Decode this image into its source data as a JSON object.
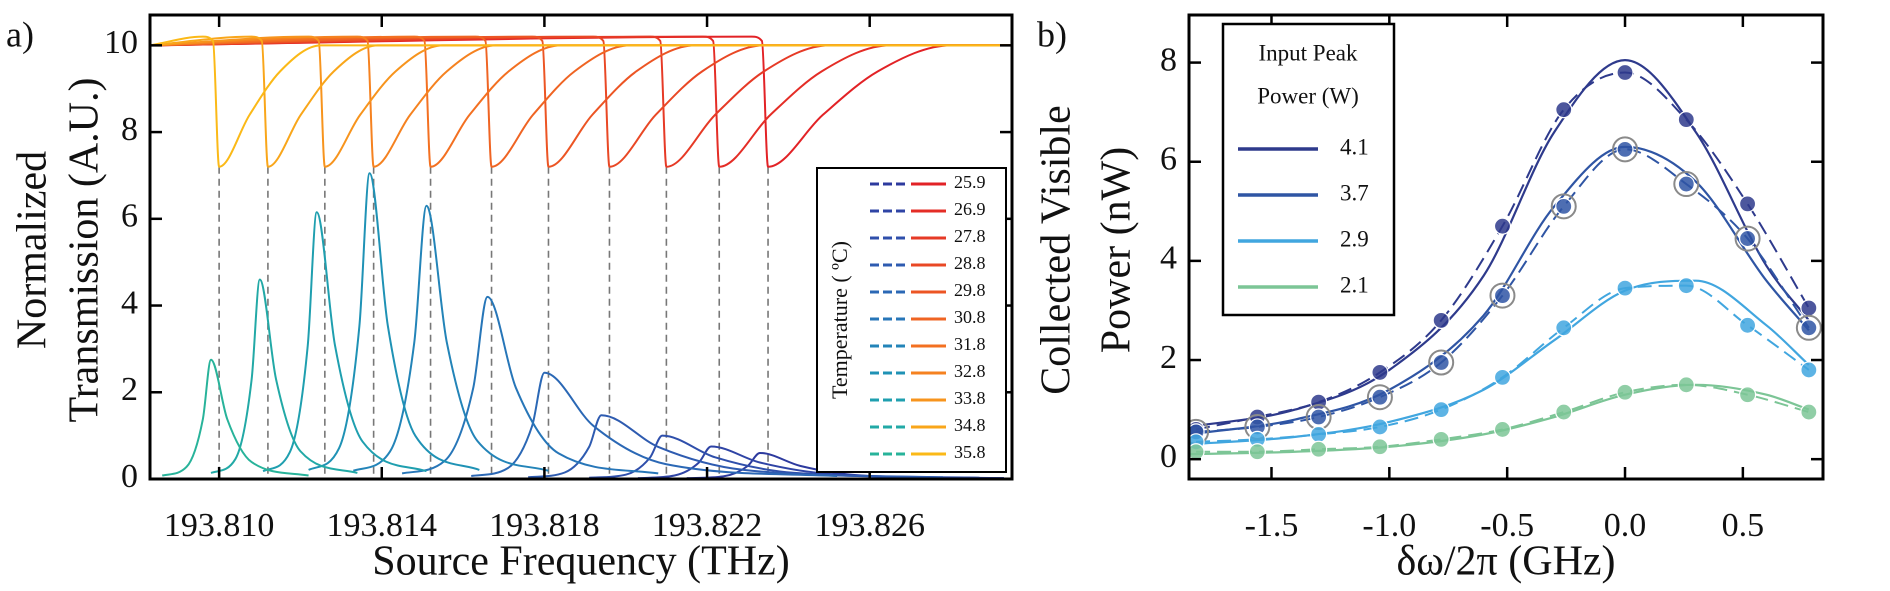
{
  "chart_data": [
    {
      "type": "line",
      "panel_label": "a)",
      "y_label": [
        "Normalized",
        "Transmission (A.U.)"
      ],
      "x_label": "Source Frequency (THz)",
      "xlim": [
        193.8083,
        193.8295
      ],
      "ylim": [
        0,
        10.7
      ],
      "xticks": [
        {
          "value": 193.81,
          "label": "193.810"
        },
        193.814,
        193.818,
        193.822,
        193.826
      ],
      "yticks": [
        0,
        2,
        4,
        6,
        8,
        10
      ],
      "legend_title": "Temperature ( ºC)",
      "series": [
        {
          "name": "25.9",
          "color": "#e22226",
          "x": [
            193.8083,
            193.8231,
            193.82335,
            193.8235,
            193.82485,
            193.8262,
            193.828,
            193.8295
          ],
          "values": [
            10.0,
            10.2,
            10.1,
            7.2,
            8.4,
            9.4,
            10.0,
            10.0
          ],
          "peak_color": "#2d3a9e",
          "peak_x": [
            193.8215,
            193.8224,
            193.823,
            193.8233,
            193.8243,
            193.8258,
            193.8293
          ],
          "peak_values": [
            0.02,
            0.06,
            0.3,
            0.6,
            0.3,
            0.08,
            0.02
          ]
        },
        {
          "name": "26.9",
          "color": "#e42d26",
          "x": [
            193.8083,
            193.8219,
            193.82215,
            193.8223,
            193.82356,
            193.82482,
            193.8265,
            193.8295
          ],
          "values": [
            10.0,
            10.2,
            10.1,
            7.2,
            8.4,
            9.4,
            10.0,
            10.0
          ],
          "peak_color": "#2f44a5",
          "peak_x": [
            193.8203,
            193.8212,
            193.8218,
            193.8221,
            193.8233,
            193.8251,
            193.8293
          ],
          "peak_values": [
            0.02,
            0.08,
            0.38,
            0.75,
            0.38,
            0.11,
            0.02
          ]
        },
        {
          "name": "27.8",
          "color": "#e63a26",
          "x": [
            193.8083,
            193.8206,
            193.82085,
            193.821,
            193.8222,
            193.8234,
            193.825,
            193.8295
          ],
          "values": [
            10.0,
            10.2,
            10.1,
            7.2,
            8.4,
            9.4,
            10.0,
            10.0
          ],
          "peak_color": "#2f4fab",
          "peak_x": [
            193.8191,
            193.82,
            193.8206,
            193.8209,
            193.8222,
            193.82415,
            193.8287
          ],
          "peak_values": [
            0.03,
            0.1,
            0.5,
            1.0,
            0.5,
            0.14,
            0.03
          ]
        },
        {
          "name": "28.8",
          "color": "#e94825",
          "x": [
            193.8083,
            193.8192,
            193.81945,
            193.8196,
            193.82074,
            193.82188,
            193.8234,
            193.8295
          ],
          "values": [
            10.0,
            10.2,
            10.1,
            7.2,
            8.4,
            9.4,
            10.0,
            10.0
          ],
          "peak_color": "#2e5bb0",
          "peak_x": [
            193.8176,
            193.8185,
            193.8191,
            193.8194,
            193.8208,
            193.8229,
            193.8278
          ],
          "peak_values": [
            0.04,
            0.15,
            0.74,
            1.47,
            0.74,
            0.21,
            0.04
          ]
        },
        {
          "name": "29.8",
          "color": "#ec5524",
          "x": [
            193.8083,
            193.8177,
            193.81795,
            193.8181,
            193.81918,
            193.82026,
            193.8217,
            193.8295
          ],
          "values": [
            10.0,
            10.2,
            10.1,
            7.2,
            8.4,
            9.4,
            10.0,
            10.0
          ],
          "peak_color": "#2b68b5",
          "peak_x": [
            193.8162,
            193.8171,
            193.8177,
            193.818,
            193.8192,
            193.821,
            193.8252
          ],
          "peak_values": [
            0.07,
            0.25,
            1.23,
            2.45,
            1.23,
            0.34,
            0.07
          ]
        },
        {
          "name": "30.8",
          "color": "#ef6423",
          "x": [
            193.8083,
            193.8163,
            193.81655,
            193.8167,
            193.81772,
            193.81874,
            193.8201,
            193.8295
          ],
          "values": [
            10.0,
            10.2,
            10.1,
            7.2,
            8.4,
            9.4,
            10.0,
            10.0
          ],
          "peak_color": "#2776b8",
          "peak_x": [
            193.8145,
            193.81555,
            193.81625,
            193.8166,
            193.8173,
            193.81835,
            193.8208
          ],
          "peak_values": [
            0.13,
            0.42,
            2.1,
            4.2,
            2.1,
            0.59,
            0.13
          ]
        },
        {
          "name": "31.8",
          "color": "#f37021",
          "x": [
            193.8083,
            193.8148,
            193.81505,
            193.8152,
            193.81616,
            193.81712,
            193.8184,
            193.8295
          ],
          "values": [
            10.0,
            10.2,
            10.1,
            7.2,
            8.4,
            9.4,
            10.0,
            10.0
          ],
          "peak_color": "#2384b8",
          "peak_x": [
            193.8133,
            193.8142,
            193.8148,
            193.8151,
            193.8156,
            193.81635,
            193.8181
          ],
          "peak_values": [
            0.19,
            0.63,
            3.15,
            6.3,
            3.15,
            0.88,
            0.19
          ]
        },
        {
          "name": "32.8",
          "color": "#f58220",
          "x": [
            193.8083,
            193.8134,
            193.81365,
            193.8138,
            193.8147,
            193.8156,
            193.8168,
            193.8295
          ],
          "values": [
            10.0,
            10.2,
            10.1,
            7.2,
            8.4,
            9.4,
            10.0,
            10.0
          ],
          "peak_color": "#1f92b5",
          "peak_x": [
            193.8122,
            193.81295,
            193.81345,
            193.8137,
            193.81415,
            193.81483,
            193.8164
          ],
          "peak_values": [
            0.21,
            0.71,
            3.53,
            7.05,
            3.53,
            0.99,
            0.21
          ]
        },
        {
          "name": "33.8",
          "color": "#f7941d",
          "x": [
            193.8083,
            193.8122,
            193.81245,
            193.8126,
            193.81347,
            193.81434,
            193.8155,
            193.8295
          ],
          "values": [
            10.0,
            10.2,
            10.1,
            7.2,
            8.4,
            9.4,
            10.0,
            10.0
          ],
          "peak_color": "#1f9faf",
          "peak_x": [
            193.81108,
            193.81174,
            193.81218,
            193.8124,
            193.81285,
            193.81353,
            193.8151
          ],
          "peak_values": [
            0.18,
            0.62,
            3.08,
            6.15,
            3.08,
            0.86,
            0.18
          ]
        },
        {
          "name": "34.8",
          "color": "#f9a61a",
          "x": [
            193.8083,
            193.8108,
            193.81105,
            193.8112,
            193.81201,
            193.81282,
            193.8139,
            193.8295
          ],
          "values": [
            10.0,
            10.2,
            10.1,
            7.2,
            8.4,
            9.4,
            10.0,
            10.0
          ],
          "peak_color": "#22a9a6",
          "peak_x": [
            193.8098,
            193.8104,
            193.8108,
            193.811,
            193.8114,
            193.812,
            193.8134
          ],
          "peak_values": [
            0.14,
            0.46,
            2.3,
            4.6,
            2.3,
            0.64,
            0.14
          ]
        },
        {
          "name": "35.8",
          "color": "#fbb917",
          "x": [
            193.8083,
            193.8096,
            193.80985,
            193.81,
            193.81075,
            193.8115,
            193.8125,
            193.8295
          ],
          "values": [
            10.0,
            10.2,
            10.1,
            7.2,
            8.4,
            9.4,
            10.0,
            10.0
          ],
          "peak_color": "#28b39a",
          "peak_x": [
            193.8086,
            193.8092,
            193.8096,
            193.8098,
            193.8102,
            193.8108,
            193.8122
          ],
          "peak_values": [
            0.08,
            0.28,
            1.38,
            2.75,
            1.38,
            0.39,
            0.08
          ]
        }
      ]
    },
    {
      "type": "scatter",
      "panel_label": "b)",
      "y_label": [
        "Collected  Visible",
        "Power (nW)"
      ],
      "x_label": "δω/2π (GHz)",
      "xlim": [
        -1.85,
        0.84
      ],
      "ylim": [
        -0.4,
        8.96
      ],
      "xticks": [
        -1.5,
        {
          "value": -1,
          "label": "-1.0"
        },
        -0.5,
        {
          "value": 0,
          "label": "0.0"
        },
        0.5
      ],
      "yticks": [
        0,
        2,
        4,
        6,
        8
      ],
      "legend_title": [
        "Input Peak",
        "Power (W)"
      ],
      "legend": "upper left",
      "x": [
        -1.82,
        -1.56,
        -1.3,
        -1.04,
        -0.78,
        -0.52,
        -0.26,
        0,
        0.26,
        0.52,
        0.78
      ],
      "fit_x": [
        -1.85,
        -1.4,
        -1.0,
        -0.6,
        -0.3,
        0,
        0.3,
        0.6,
        0.78
      ],
      "series": [
        {
          "name": "4.1",
          "color": "#2e3a8c",
          "values": [
            0.6,
            0.85,
            1.15,
            1.75,
            2.8,
            4.7,
            7.05,
            7.8,
            6.85,
            5.15,
            3.05
          ],
          "fit_values": [
            0.65,
            1.0,
            1.8,
            3.7,
            6.6,
            8.05,
            6.6,
            3.9,
            2.8
          ]
        },
        {
          "name": "3.7",
          "color": "#2f55a4",
          "ring_color": "#8a8a8a",
          "values": [
            0.55,
            0.65,
            0.85,
            1.25,
            1.95,
            3.3,
            5.1,
            6.25,
            5.55,
            4.45,
            2.65
          ],
          "fit_values": [
            0.5,
            0.8,
            1.4,
            2.9,
            5.1,
            6.3,
            5.6,
            3.6,
            2.6
          ]
        },
        {
          "name": "2.9",
          "color": "#41a6df",
          "values": [
            0.35,
            0.4,
            0.5,
            0.65,
            1.0,
            1.65,
            2.65,
            3.45,
            3.5,
            2.7,
            1.8
          ],
          "fit_values": [
            0.3,
            0.45,
            0.75,
            1.4,
            2.4,
            3.4,
            3.6,
            2.7,
            1.9
          ]
        },
        {
          "name": "2.1",
          "color": "#7cc596",
          "values": [
            0.15,
            0.15,
            0.2,
            0.25,
            0.4,
            0.6,
            0.95,
            1.35,
            1.5,
            1.3,
            0.95
          ],
          "fit_values": [
            0.1,
            0.15,
            0.25,
            0.5,
            0.85,
            1.3,
            1.5,
            1.3,
            1.0
          ]
        }
      ]
    }
  ]
}
